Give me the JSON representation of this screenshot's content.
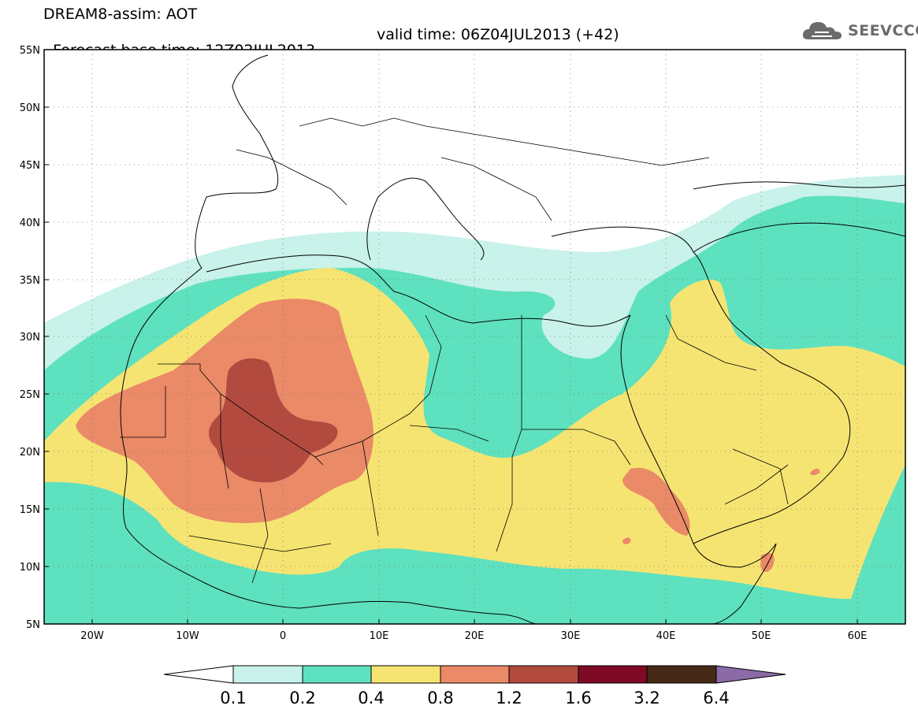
{
  "header": {
    "title": "DREAM8-assim: AOT",
    "base_time": "Forecast base time: 12Z02JUL2013",
    "valid_time": "valid time: 06Z04JUL2013 (+42)"
  },
  "logo": {
    "text": "SEEVCCC",
    "icon": "cloud-logo-icon"
  },
  "map": {
    "lat_range": [
      5,
      55
    ],
    "lon_range": [
      -25,
      65
    ],
    "lat_labels": [
      "55N",
      "50N",
      "45N",
      "40N",
      "35N",
      "30N",
      "25N",
      "20N",
      "15N",
      "10N",
      "5N"
    ],
    "lon_labels": [
      "20W",
      "10W",
      "0",
      "10E",
      "20E",
      "30E",
      "40E",
      "50E",
      "60E"
    ],
    "gridlines": "dotted"
  },
  "colorbar": {
    "levels": [
      "0.1",
      "0.2",
      "0.4",
      "0.8",
      "1.2",
      "1.6",
      "3.2",
      "6.4"
    ],
    "colors": [
      "#ffffff",
      "#c8f2ea",
      "#5ee1bf",
      "#f6e472",
      "#ea8a67",
      "#b24a3f",
      "#7e0a25",
      "#462916",
      "#8a6ba6"
    ]
  }
}
